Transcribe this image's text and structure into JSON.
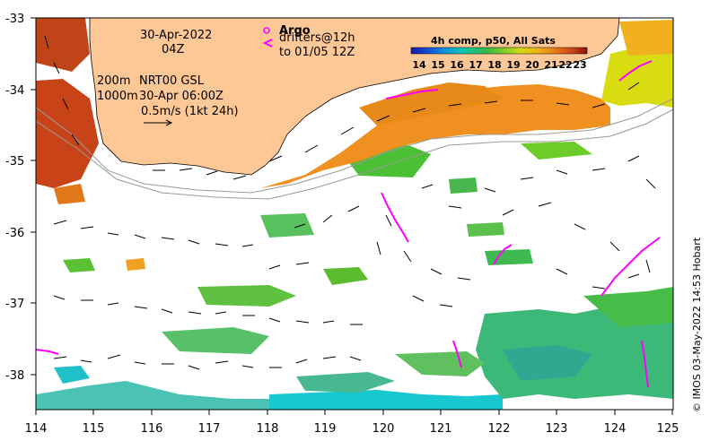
{
  "map": {
    "date_line": "30-Apr-2022",
    "time_line": "04Z",
    "depth_line_1": "200m",
    "product_line": "NRT00 GSL",
    "depth_line_2": "1000m",
    "current_time_line": "30-Apr 06:00Z",
    "scale_line": "0.5m/s (1kt 24h)",
    "argo_title": "Argo",
    "drifters_line": "drifters@12h",
    "drifters_to_line": "to 01/05 12Z",
    "colorbar_title": "4h comp, p50, All Sats",
    "colorbar_ticks": [
      "14",
      "15",
      "16",
      "17",
      "18",
      "19",
      "20",
      "21",
      "22",
      "23"
    ],
    "y_ticks": [
      "-33",
      "-34",
      "-35",
      "-36",
      "-37",
      "-38"
    ],
    "x_ticks": [
      "114",
      "115",
      "116",
      "117",
      "118",
      "119",
      "120",
      "121",
      "122",
      "123",
      "124",
      "125"
    ],
    "credit": "© IMOS 03-May-2022 14:53 Hobart",
    "colors": {
      "land": "#fdc896",
      "argo": "#ff00ff",
      "ocean": "#ffffff"
    }
  }
}
